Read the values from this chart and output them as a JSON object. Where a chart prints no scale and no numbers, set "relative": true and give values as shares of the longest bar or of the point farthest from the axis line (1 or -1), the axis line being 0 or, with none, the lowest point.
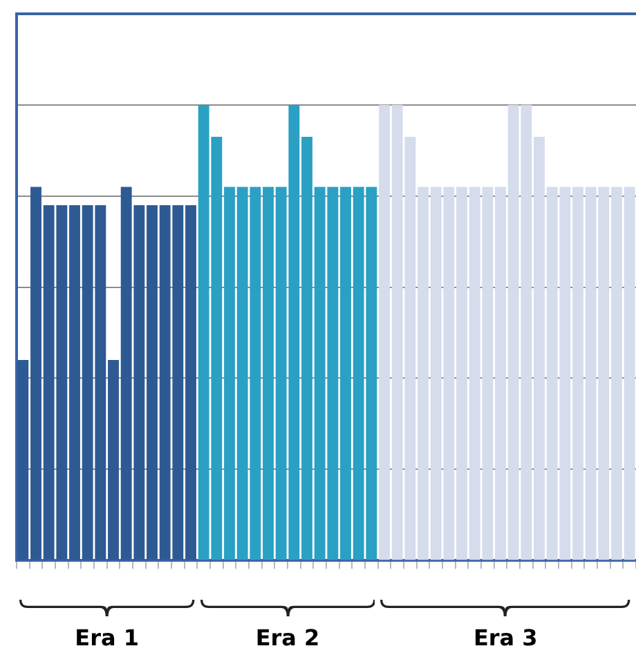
{
  "chart_data": {
    "type": "bar",
    "relative": true,
    "grid": "y",
    "legend": false,
    "categories": [
      null,
      null,
      null,
      null,
      null,
      null,
      null,
      null,
      null,
      null,
      null,
      null,
      null,
      null,
      null,
      null,
      null,
      null,
      null,
      null,
      null,
      null,
      null,
      null,
      null,
      null,
      null,
      null,
      null,
      null,
      null,
      null,
      null,
      null,
      null,
      null,
      null,
      null,
      null,
      null,
      null,
      null,
      null,
      null,
      null,
      null,
      null,
      null
    ],
    "values": [
      0.44,
      0.82,
      0.78,
      0.78,
      0.78,
      0.78,
      0.78,
      0.44,
      0.82,
      0.78,
      0.78,
      0.78,
      0.78,
      0.78,
      1,
      0.93,
      0.82,
      0.82,
      0.82,
      0.82,
      0.82,
      1,
      0.93,
      0.82,
      0.82,
      0.82,
      0.82,
      0.82,
      1,
      1,
      0.93,
      0.82,
      0.82,
      0.82,
      0.82,
      0.82,
      0.82,
      0.82,
      1,
      1,
      0.93,
      0.82,
      0.82,
      0.82,
      0.82,
      0.82,
      0.82,
      0.82
    ],
    "colors": [
      "#2e5a94",
      "#2e5a94",
      "#2e5a94",
      "#2e5a94",
      "#2e5a94",
      "#2e5a94",
      "#2e5a94",
      "#2e5a94",
      "#2e5a94",
      "#2e5a94",
      "#2e5a94",
      "#2e5a94",
      "#2e5a94",
      "#2e5a94",
      "#2aa0c4",
      "#2aa0c4",
      "#2aa0c4",
      "#2aa0c4",
      "#2aa0c4",
      "#2aa0c4",
      "#2aa0c4",
      "#2aa0c4",
      "#2aa0c4",
      "#2aa0c4",
      "#2aa0c4",
      "#2aa0c4",
      "#2aa0c4",
      "#2aa0c4",
      "#d5dcec",
      "#d5dcec",
      "#d5dcec",
      "#d5dcec",
      "#d5dcec",
      "#d5dcec",
      "#d5dcec",
      "#d5dcec",
      "#d5dcec",
      "#d5dcec",
      "#d5dcec",
      "#d5dcec",
      "#d5dcec",
      "#d5dcec",
      "#d5dcec",
      "#d5dcec",
      "#d5dcec",
      "#d5dcec",
      "#d5dcec",
      "#d5dcec"
    ],
    "annotations": [
      "Era 1",
      "Era 2",
      "Era 3"
    ]
  }
}
